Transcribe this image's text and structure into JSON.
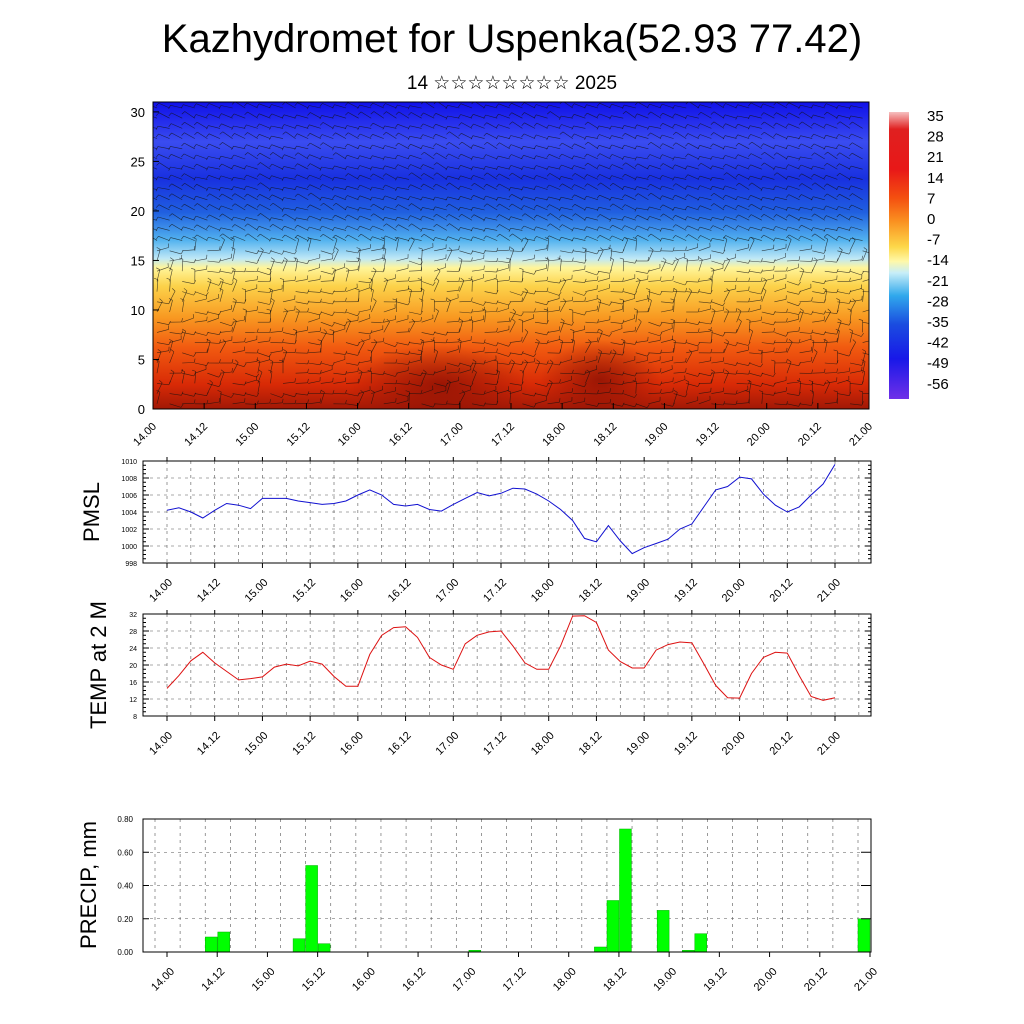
{
  "title": "Kazhydromet for Uspenka(52.93 77.42)",
  "subtitle": "14 ☆☆☆☆☆☆☆☆ 2025",
  "time_labels": [
    "14.00",
    "14.12",
    "15.00",
    "15.12",
    "16.00",
    "16.12",
    "17.00",
    "17.12",
    "18.00",
    "18.12",
    "19.00",
    "19.12",
    "20.00",
    "20.12",
    "21.00"
  ],
  "colors": {
    "pmsl_line": "#1010d0",
    "temp_line": "#dd1111",
    "precip_bar": "#00ff00",
    "precip_edge": "#00b000"
  },
  "chart_data": [
    {
      "type": "heatmap",
      "title": "Kazhydromet for Uspenka(52.93 77.42)",
      "xlabel": "",
      "ylabel": "",
      "x": [
        "14.00",
        "14.12",
        "15.00",
        "15.12",
        "16.00",
        "16.12",
        "17.00",
        "17.12",
        "18.00",
        "18.12",
        "19.00",
        "19.12",
        "20.00",
        "20.12",
        "21.00"
      ],
      "y_ticks": [
        0,
        5,
        10,
        15,
        20,
        25,
        30
      ],
      "ylim": [
        0,
        31
      ],
      "colorbar_labels": [
        "35",
        "28",
        "21",
        "14",
        "7",
        "0",
        "-7",
        "-14",
        "-21",
        "-28",
        "-35",
        "-42",
        "-49",
        "-56"
      ],
      "temperature_profile": [
        {
          "height": 0,
          "value": 22
        },
        {
          "height": 5,
          "value": 20
        },
        {
          "height": 8,
          "value": 14
        },
        {
          "height": 13,
          "value": 2
        },
        {
          "height": 15,
          "value": -10
        },
        {
          "height": 18,
          "value": -30
        },
        {
          "height": 23,
          "value": -52
        },
        {
          "height": 27,
          "value": -46
        },
        {
          "height": 31,
          "value": -58
        }
      ],
      "overlay": "wind barbs"
    },
    {
      "type": "line",
      "ylabel": "PMSL",
      "ylim": [
        998,
        1010
      ],
      "y_ticks": [
        998,
        1000,
        1002,
        1004,
        1006,
        1008,
        1010
      ],
      "grid": true,
      "series": [
        {
          "values": [
            1004.2,
            1004.5,
            1004.0,
            1003.3,
            1004.2,
            1005.0,
            1004.8,
            1004.4,
            1005.6,
            1005.6,
            1005.6,
            1005.3,
            1005.1,
            1004.9,
            1005.0,
            1005.3,
            1006.0,
            1006.6,
            1006.0,
            1004.9,
            1004.7,
            1004.9,
            1004.3,
            1004.1,
            1004.9,
            1005.6,
            1006.3,
            1005.9,
            1006.2,
            1006.8,
            1006.7,
            1006.1,
            1005.3,
            1004.3,
            1003.0,
            1000.9,
            1000.5,
            1002.4,
            1000.6,
            999.1,
            999.8,
            1000.3,
            1000.8,
            1002.0,
            1002.6,
            1004.6,
            1006.6,
            1007.0,
            1008.1,
            1007.9,
            1006.1,
            1004.8,
            1004.0,
            1004.6,
            1006.0,
            1007.3,
            1009.6
          ]
        }
      ]
    },
    {
      "type": "line",
      "ylabel": "TEMP at 2 M",
      "ylim": [
        8,
        32
      ],
      "y_ticks": [
        8,
        12,
        16,
        20,
        24,
        28,
        32
      ],
      "grid": true,
      "series": [
        {
          "values": [
            14.5,
            17.5,
            21.0,
            23.0,
            20.5,
            18.5,
            16.5,
            16.8,
            17.2,
            19.5,
            20.2,
            19.8,
            20.9,
            20.2,
            17.3,
            15.0,
            15.0,
            22.5,
            27.0,
            28.8,
            29.0,
            26.5,
            21.8,
            20.0,
            19.0,
            25.0,
            27.0,
            27.8,
            28.0,
            24.5,
            20.5,
            19.0,
            19.0,
            24.5,
            31.5,
            31.6,
            30.0,
            23.5,
            20.8,
            19.3,
            19.3,
            23.5,
            24.8,
            25.4,
            25.2,
            20.3,
            15.2,
            12.3,
            12.2,
            18.0,
            21.8,
            23.0,
            22.8,
            17.5,
            12.6,
            11.7,
            12.3
          ]
        }
      ]
    },
    {
      "type": "bar",
      "ylabel": "PRECIP, mm",
      "ylim": [
        0,
        0.8
      ],
      "y_tick_labels": [
        "0.00",
        "0.20",
        "0.40",
        "0.60",
        "0.80"
      ],
      "grid": true,
      "values": [
        0,
        0,
        0,
        0,
        0.09,
        0.12,
        0,
        0,
        0,
        0,
        0,
        0.08,
        0.52,
        0.05,
        0,
        0,
        0,
        0,
        0,
        0,
        0,
        0,
        0,
        0,
        0,
        0.01,
        0,
        0,
        0,
        0,
        0,
        0,
        0,
        0,
        0,
        0.03,
        0.31,
        0.74,
        0,
        0,
        0.25,
        0,
        0.01,
        0.11,
        0,
        0,
        0,
        0,
        0,
        0,
        0,
        0,
        0,
        0,
        0,
        0,
        0.2
      ]
    }
  ]
}
